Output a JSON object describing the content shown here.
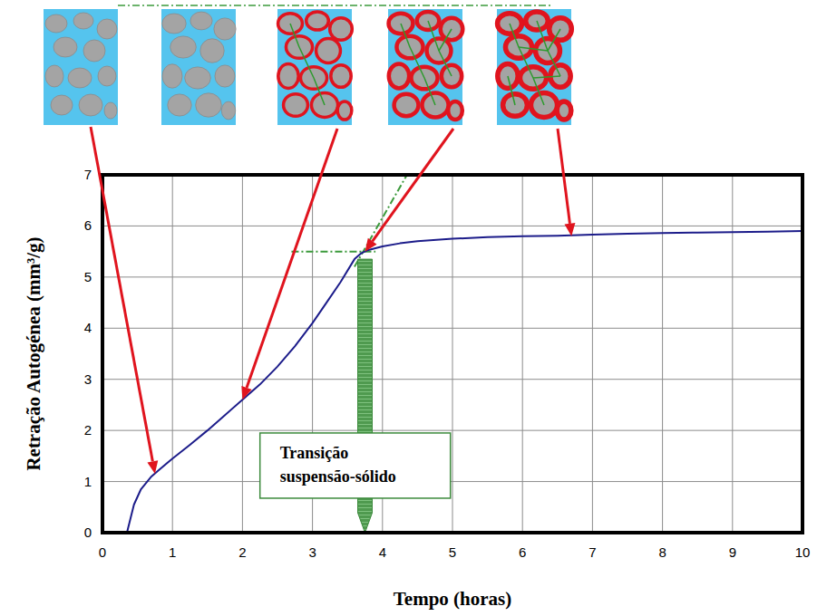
{
  "chart_data": {
    "type": "line",
    "x_label": "Tempo (horas)",
    "y_label": "Retração Autogénea (mm³/g)",
    "x": [
      0.35,
      0.45,
      0.55,
      0.7,
      0.8,
      1.0,
      1.25,
      1.5,
      1.75,
      2.0,
      2.25,
      2.5,
      2.75,
      3.0,
      3.2,
      3.4,
      3.6,
      3.7,
      3.8,
      4.0,
      4.25,
      4.5,
      5.0,
      5.5,
      6.0,
      6.5,
      7.0,
      7.5,
      8.0,
      8.5,
      9.0,
      9.5,
      10.0
    ],
    "values": [
      0.0,
      0.55,
      0.85,
      1.1,
      1.22,
      1.45,
      1.72,
      2.0,
      2.3,
      2.6,
      2.9,
      3.25,
      3.65,
      4.1,
      4.5,
      4.9,
      5.35,
      5.47,
      5.53,
      5.6,
      5.66,
      5.7,
      5.75,
      5.78,
      5.8,
      5.81,
      5.83,
      5.85,
      5.86,
      5.87,
      5.88,
      5.89,
      5.9
    ],
    "color": "#1c1c8a",
    "xlim": [
      0,
      10
    ],
    "ylim": [
      0,
      7
    ],
    "xticks": [
      0,
      1,
      2,
      3,
      4,
      5,
      6,
      7,
      8,
      9,
      10
    ],
    "yticks": [
      0,
      1,
      2,
      3,
      4,
      5,
      6,
      7
    ],
    "grid": true,
    "stage_points": {
      "x": [
        0.75,
        2.0,
        3.75,
        6.7
      ],
      "y": [
        1.15,
        2.6,
        5.5,
        5.8
      ]
    },
    "tangents": [
      {
        "x": [
          2.7,
          3.9
        ],
        "y": [
          5.5,
          5.5
        ]
      },
      {
        "x": [
          3.6,
          4.35
        ],
        "y": [
          5.2,
          7.0
        ]
      }
    ],
    "annotations": [
      {
        "text": "Transição suspensão-sólido",
        "x": 3.75,
        "y": 5.35
      }
    ]
  }
}
